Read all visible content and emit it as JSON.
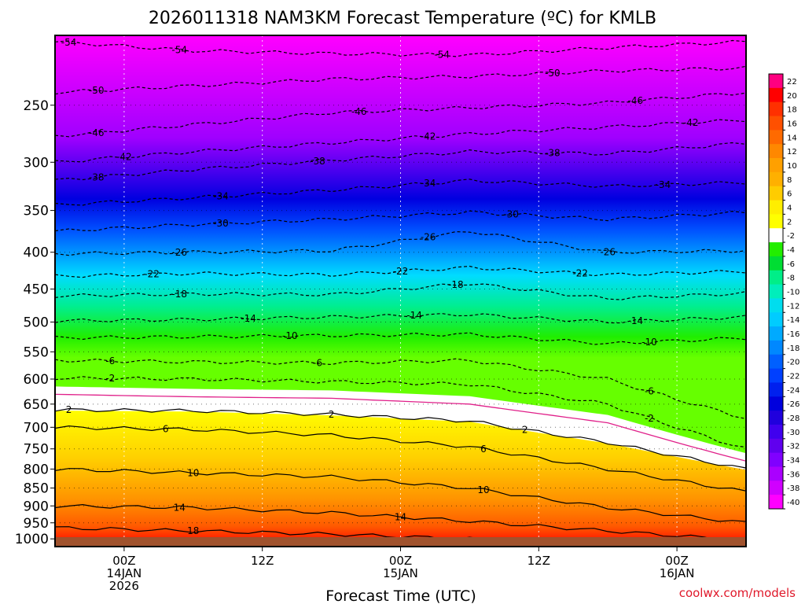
{
  "chart_data": {
    "type": "heatmap",
    "title": "2026011318 NAM3KM Forecast Temperature (ºC) for KMLB",
    "xlabel": "Forecast Time (UTC)",
    "ylabel": "",
    "credit": "coolwx.com/models",
    "xlim_hours": [
      -5,
      45
    ],
    "ylim_hpa": [
      1025,
      200
    ],
    "y_ticks": [
      250,
      300,
      350,
      400,
      450,
      500,
      550,
      600,
      650,
      700,
      750,
      800,
      850,
      900,
      950,
      1000
    ],
    "x_ticks": [
      {
        "hour": 0,
        "lines": [
          "00Z",
          "14JAN",
          "2026"
        ]
      },
      {
        "hour": 10,
        "lines": [
          "12Z"
        ]
      },
      {
        "hour": 20,
        "lines": [
          "00Z",
          "15JAN"
        ]
      },
      {
        "hour": 30,
        "lines": [
          "12Z"
        ]
      },
      {
        "hour": 40,
        "lines": [
          "00Z",
          "16JAN"
        ]
      }
    ],
    "colorbar": {
      "labels": [
        "22",
        "20",
        "18",
        "16",
        "14",
        "12",
        "10",
        "8",
        "6",
        "4",
        "2",
        "-2",
        "-4",
        "-6",
        "-8",
        "-10",
        "-12",
        "-14",
        "-16",
        "-18",
        "-20",
        "-22",
        "-24",
        "-26",
        "-28",
        "-30",
        "-32",
        "-34",
        "-36",
        "-38",
        "-40"
      ],
      "colors": [
        "#ff0080",
        "#ff0000",
        "#ff3000",
        "#ff5000",
        "#ff6a00",
        "#ff8800",
        "#ffa000",
        "#ffb000",
        "#ffcc00",
        "#ffee00",
        "#ffff00",
        "#ffffff",
        "#22ee00",
        "#00dd33",
        "#00ee88",
        "#00eebb",
        "#00ddee",
        "#00ccff",
        "#00aaff",
        "#0088ff",
        "#0060ff",
        "#0040ff",
        "#0020ee",
        "#0000dd",
        "#2000dd",
        "#4000ee",
        "#6000ee",
        "#8000ff",
        "#aa00ff",
        "#d000ff",
        "#ff00ff"
      ]
    },
    "contour_levels": [
      {
        "value": -54,
        "style": "dashed",
        "pressures": [
          204,
          210,
          212,
          213,
          208,
          204
        ],
        "labels": [
          "-54",
          "-54",
          "-54"
        ],
        "label_hours": [
          -4,
          4,
          23
        ]
      },
      {
        "value": -50,
        "style": "dashed",
        "pressures": [
          240,
          235,
          230,
          228,
          224,
          222
        ],
        "labels": [
          "-50",
          "-50"
        ],
        "label_hours": [
          -2,
          31
        ]
      },
      {
        "value": -46,
        "style": "dashed",
        "pressures": [
          276,
          266,
          256,
          252,
          248,
          240
        ],
        "labels": [
          "-46",
          "-46",
          "-46"
        ],
        "label_hours": [
          -2,
          17,
          37
        ]
      },
      {
        "value": -42,
        "style": "dashed",
        "pressures": [
          300,
          290,
          282,
          274,
          268,
          262
        ],
        "labels": [
          "-42",
          "-42",
          "-42"
        ],
        "label_hours": [
          0,
          22,
          41
        ]
      },
      {
        "value": -38,
        "style": "dashed",
        "pressures": [
          318,
          307,
          298,
          290,
          292,
          282
        ],
        "labels": [
          "-38",
          "-38",
          "-38"
        ],
        "label_hours": [
          -2,
          14,
          31
        ]
      },
      {
        "value": -34,
        "style": "dashed",
        "pressures": [
          344,
          336,
          328,
          318,
          324,
          320
        ],
        "labels": [
          "-34",
          "-34",
          "-34"
        ],
        "label_hours": [
          7,
          22,
          39
        ]
      },
      {
        "value": -30,
        "style": "dashed",
        "pressures": [
          374,
          366,
          360,
          352,
          360,
          352
        ],
        "labels": [
          "-30",
          "-30"
        ],
        "label_hours": [
          7,
          28
        ]
      },
      {
        "value": -26,
        "style": "dashed",
        "pressures": [
          402,
          400,
          398,
          374,
          400,
          398
        ],
        "labels": [
          "-26",
          "-26",
          "-26"
        ],
        "label_hours": [
          4,
          22,
          35
        ]
      },
      {
        "value": -22,
        "style": "dashed",
        "pressures": [
          432,
          428,
          430,
          420,
          430,
          425
        ],
        "labels": [
          "-22",
          "-22",
          "-22"
        ],
        "label_hours": [
          2,
          20,
          33
        ]
      },
      {
        "value": -18,
        "style": "dashed",
        "pressures": [
          460,
          457,
          458,
          442,
          464,
          456
        ],
        "labels": [
          "-18",
          "-18"
        ],
        "label_hours": [
          4,
          24
        ]
      },
      {
        "value": -14,
        "style": "dashed",
        "pressures": [
          498,
          496,
          492,
          488,
          500,
          492
        ],
        "labels": [
          "-14",
          "-14",
          "-14"
        ],
        "label_hours": [
          9,
          21,
          37
        ]
      },
      {
        "value": -10,
        "style": "dashed",
        "pressures": [
          526,
          524,
          522,
          520,
          536,
          526
        ],
        "labels": [
          "-10",
          "-10"
        ],
        "label_hours": [
          12,
          38
        ]
      },
      {
        "value": -6,
        "style": "dashed",
        "pressures": [
          565,
          568,
          570,
          565,
          600,
          680
        ],
        "labels": [
          "-6",
          "-6",
          "-6"
        ],
        "label_hours": [
          -1,
          14,
          38
        ]
      },
      {
        "value": -2,
        "style": "dashed",
        "pressures": [
          598,
          600,
          605,
          610,
          650,
          750
        ],
        "labels": [
          "-2",
          "-2"
        ],
        "label_hours": [
          -1,
          38
        ]
      },
      {
        "value": 2,
        "style": "solid",
        "pressures": [
          662,
          664,
          672,
          686,
          735,
          800
        ],
        "labels": [
          "2",
          "2",
          "2"
        ],
        "label_hours": [
          -4,
          15,
          29
        ]
      },
      {
        "value": 6,
        "style": "solid",
        "pressures": [
          700,
          705,
          718,
          745,
          800,
          860
        ],
        "labels": [
          "6",
          "6"
        ],
        "label_hours": [
          3,
          26
        ]
      },
      {
        "value": 10,
        "style": "solid",
        "pressures": [
          800,
          810,
          820,
          850,
          905,
          950
        ],
        "labels": [
          "10",
          "10"
        ],
        "label_hours": [
          5,
          26
        ]
      },
      {
        "value": 14,
        "style": "solid",
        "pressures": [
          900,
          905,
          920,
          945,
          975,
          1005
        ],
        "labels": [
          "14",
          "14"
        ],
        "label_hours": [
          4,
          20
        ]
      },
      {
        "value": 18,
        "style": "solid",
        "pressures": [
          965,
          975,
          985,
          1000,
          1010,
          1015
        ],
        "labels": [
          "18"
        ],
        "label_hours": [
          5
        ]
      }
    ],
    "zero_isotherm_pressures": [
      630,
      635,
      638,
      650,
      690,
      780
    ]
  }
}
